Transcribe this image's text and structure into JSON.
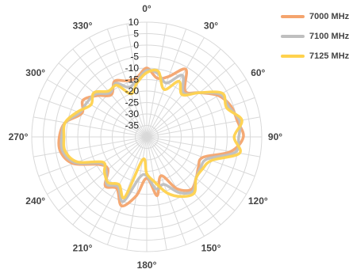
{
  "chart_data": {
    "type": "line",
    "projection": "polar",
    "angle_unit": "degrees",
    "angle_zero": "top",
    "angle_direction": "clockwise",
    "radial_range": [
      -40,
      10
    ],
    "radial_ticks": [
      -35,
      -30,
      -25,
      -20,
      -15,
      -10,
      -5,
      0,
      5,
      10
    ],
    "angle_ticks": [
      0,
      30,
      60,
      90,
      120,
      150,
      180,
      210,
      240,
      270,
      300,
      330
    ],
    "angle_tick_labels": [
      "0°",
      "30°",
      "60°",
      "90°",
      "120°",
      "150°",
      "180°",
      "210°",
      "240°",
      "270°",
      "300°",
      "330°"
    ],
    "radial_tick_labels": [
      "-35",
      "-30",
      "-25",
      "-20",
      "-15",
      "-10",
      "-5",
      "0",
      "5",
      "10"
    ],
    "grid": true,
    "legend_position": "top-right",
    "angles": [
      0,
      10,
      20,
      30,
      40,
      50,
      60,
      70,
      80,
      90,
      100,
      110,
      120,
      130,
      140,
      150,
      160,
      170,
      180,
      190,
      200,
      210,
      220,
      230,
      240,
      250,
      260,
      270,
      280,
      290,
      300,
      310,
      320,
      330,
      340,
      350
    ],
    "series": [
      {
        "name": "7000 MHz",
        "color": "#f4a46d",
        "values": [
          -10,
          -14,
          -12,
          -6,
          -14,
          -10,
          -4,
          -1,
          0,
          2,
          -3,
          -14,
          -14,
          -12,
          -10,
          -14,
          -22,
          -14,
          -22,
          -14,
          -8,
          -14,
          -12,
          -18,
          -16,
          -6,
          -2,
          -2,
          -4,
          -10,
          -8,
          -12,
          -16,
          -12,
          -14,
          -14
        ]
      },
      {
        "name": "7100 MHz",
        "color": "#bfbfbf",
        "values": [
          -11,
          -12,
          -15,
          -9,
          -15,
          -10,
          -3,
          -2,
          1,
          0,
          -1,
          -12,
          -13,
          -12,
          -9,
          -12,
          -18,
          -17,
          -23,
          -22,
          -10,
          -15,
          -13,
          -17,
          -17,
          -7,
          -3,
          -3,
          -4,
          -9,
          -10,
          -11,
          -15,
          -13,
          -17,
          -15
        ]
      },
      {
        "name": "7125 MHz",
        "color": "#ffd24d",
        "values": [
          -12,
          -11,
          -18,
          -12,
          -16,
          -10,
          -2,
          -3,
          2,
          -2,
          1,
          -10,
          -12,
          -12,
          -8,
          -10,
          -14,
          -20,
          -24,
          -30,
          -12,
          -16,
          -14,
          -16,
          -18,
          -8,
          -4,
          -4,
          -4,
          -8,
          -12,
          -10,
          -14,
          -14,
          -20,
          -16
        ]
      }
    ]
  }
}
